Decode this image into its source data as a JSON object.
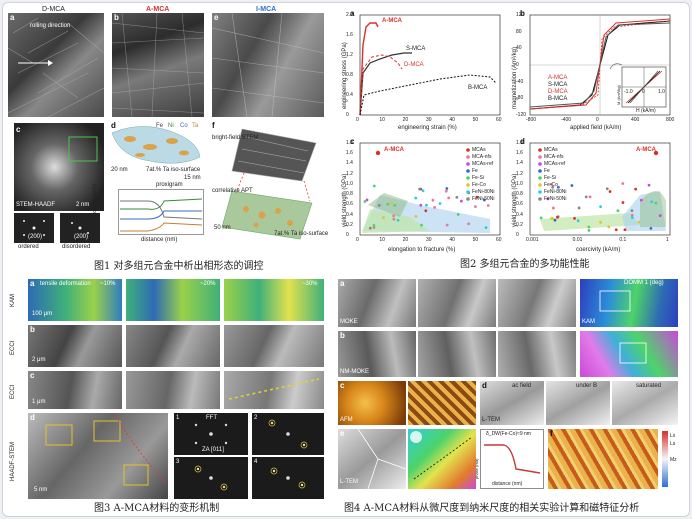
{
  "fig1": {
    "panels": {
      "a": "a",
      "b": "b",
      "c": "c",
      "d": "d",
      "e": "e",
      "f": "f"
    },
    "labels": {
      "d_mca": "D-MCA",
      "a_mca": "A-MCA",
      "i_mca": "I-MCA",
      "rolling": "rolling direction",
      "stem": "STEM-HAADF",
      "ordered": "ordered",
      "disordered": "disordered",
      "ordered_hkl": "(200)",
      "disordered_hkl": "(200)",
      "scale_2nm": "2 nm",
      "scale_20nm": "20 nm",
      "scale_50nm": "50 nm",
      "ta_iso": "7at.% Ta iso-surface",
      "ta_iso2": "7at.% Ta iso-surface",
      "proxigram": "proxigram",
      "d_nm": "15 nm",
      "ylab": "composition (at.%)",
      "xlab": "distance (nm)",
      "bf_stem": "bright-field STEM",
      "correlative_apt": "correlative APT",
      "elem1": "Fe",
      "elem2": "Ni",
      "elem3": "Co",
      "elem4": "Ta"
    },
    "caption": "图1 对多组元合金中析出相形态的调控"
  },
  "fig2": {
    "panels": {
      "a": "a",
      "b": "b",
      "c": "c",
      "d": "d"
    },
    "caption": "图2 多组元合金的多功能性能",
    "a": {
      "ylabel": "engineering stress (GPa)",
      "xlabel": "engineering strain (%)",
      "yticks": [
        "0",
        "0.4",
        "0.8",
        "1.2",
        "1.6",
        "2.0"
      ],
      "xticks": [
        "0",
        "10",
        "20",
        "30",
        "40",
        "50",
        "60"
      ],
      "series": [
        "A-MCA",
        "S-MCA",
        "D-MCA",
        "B-MCA"
      ]
    },
    "b": {
      "ylabel": "magnetization (Am²/kg)",
      "xlabel": "applied field (kA/m)",
      "yticks": [
        "120",
        "80",
        "40",
        "0",
        "-40",
        "-80",
        "-120"
      ],
      "xticks": [
        "-800",
        "-400",
        "0",
        "400",
        "800"
      ],
      "series": [
        "A-MCA",
        "S-MCA",
        "D-MCA",
        "B-MCA"
      ],
      "inset_x": "1.0",
      "inset_xl": "H (kA/m)",
      "inset_neg": "-1.0",
      "inset_zero": "0",
      "inset_y": "M (Am²/kg)"
    },
    "c": {
      "ylabel": "yield strength (GPa)",
      "xlabel": "elongation to fracture (%)",
      "yticks": [
        "0",
        "0.2",
        "0.4",
        "0.6",
        "0.8",
        "1.0",
        "1.2",
        "1.4",
        "1.6",
        "1.8"
      ],
      "xticks": [
        "0",
        "10",
        "20",
        "30",
        "40",
        "50",
        "60"
      ],
      "point": "A-MCA",
      "legend": [
        "MCAs",
        "MCA-nfs",
        "MCAs-ref",
        "Fe",
        "Fe-Si",
        "Fe-Co",
        "FeNi-80Ni",
        "FeNi-50Ni"
      ]
    },
    "d": {
      "ylabel": "yield strength (GPa)",
      "xlabel": "coercivity (kA/m)",
      "yticks": [
        "0",
        "0.2",
        "0.4",
        "0.6",
        "0.8",
        "1.0",
        "1.2",
        "1.4",
        "1.6",
        "1.8"
      ],
      "xticks": [
        "0.001",
        "0.01",
        "0.1",
        "1"
      ],
      "point": "A-MCA",
      "legend": [
        "MCAs",
        "MCA-nfs",
        "MCAs-ref",
        "Fe",
        "Fe-Si",
        "Fe-Co",
        "FeNi-80Ni",
        "FeNi-50Ni"
      ]
    }
  },
  "fig3": {
    "panels": {
      "a": "a",
      "b": "b",
      "c": "c",
      "d": "d"
    },
    "side": {
      "kam": "KAM",
      "ecci1": "ECCI",
      "ecci2": "ECCI",
      "haadf": "HAADF-STEM"
    },
    "labels": {
      "r1": "tensile deformation",
      "r1v": "~10%",
      "r2": "~20%",
      "r3": "~30%",
      "scale_100": "100 μm",
      "scale_2": "2 μm",
      "scale_1": "1 μm",
      "scale_5": "5 nm",
      "fft": "FFT",
      "za": "ZA [011]",
      "q1": "1",
      "q2": "2",
      "q3": "3",
      "q4": "4"
    },
    "caption": "图3  A-MCA材料的变形机制"
  },
  "fig4": {
    "panels": {
      "a": "a",
      "b": "b",
      "c": "c",
      "d": "d",
      "e": "e",
      "f": "f"
    },
    "labels": {
      "mfm": "MOKE",
      "kam": "KAM",
      "odm": "DOMM 1 (deg)",
      "nm": "NM-MOKE",
      "afm": "AFM",
      "ltem": "L-TEM",
      "ltem2": "L-TEM",
      "ac_f": "ac field",
      "under_f": "under B",
      "saturated": "saturated",
      "hdw": "δ_DW(Fe-Co)≈9 nm",
      "dist": "distance (nm)",
      "phase": "phase (rad)",
      "nm_label": "nm",
      "ls": "Lx",
      "ls2": "Ls",
      "mz": "Mz"
    },
    "caption": "图4  A-MCA材料从微尺度到纳米尺度的相关实验计算和磁特征分析"
  }
}
